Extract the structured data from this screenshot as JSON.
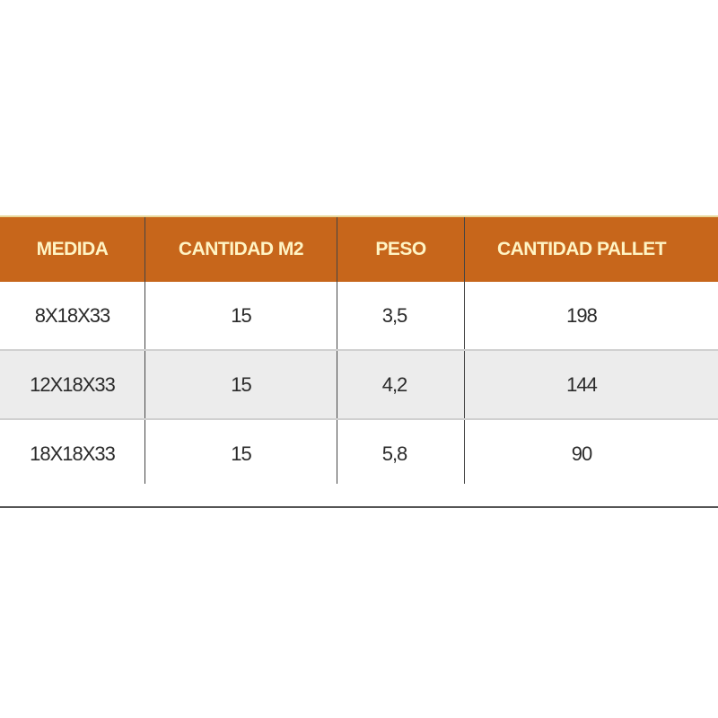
{
  "table": {
    "headers": [
      "MEDIDA",
      "CANTIDAD M2",
      "PESO",
      "CANTIDAD PALLET"
    ],
    "rows": [
      [
        "8X18X33",
        "15",
        "3,5",
        "198"
      ],
      [
        "12X18X33",
        "15",
        "4,2",
        "144"
      ],
      [
        "18X18X33",
        "15",
        "5,8",
        "90"
      ]
    ]
  },
  "colors": {
    "header_bg": "#c7661b",
    "header_text": "#fff4c4",
    "alt_row": "#ececec"
  }
}
